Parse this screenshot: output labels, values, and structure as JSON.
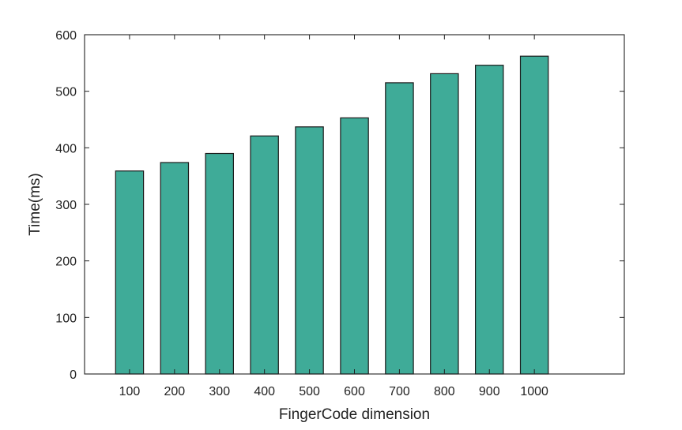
{
  "colors": {
    "bar_fill": "#3fab98",
    "bar_stroke": "#1a1a1a",
    "axis": "#222222",
    "background": "#ffffff"
  },
  "chart_data": {
    "type": "bar",
    "categories": [
      "100",
      "200",
      "300",
      "400",
      "500",
      "600",
      "700",
      "800",
      "900",
      "1000"
    ],
    "values": [
      359,
      374,
      390,
      421,
      437,
      453,
      515,
      531,
      546,
      562
    ],
    "title": "",
    "xlabel": "FingerCode dimension",
    "ylabel": "Time(ms)",
    "ylim": [
      0,
      600
    ],
    "yticks": [
      0,
      100,
      200,
      300,
      400,
      500,
      600
    ],
    "x_range_categories": [
      0,
      12
    ],
    "grid": false,
    "legend": "none",
    "box": true
  }
}
